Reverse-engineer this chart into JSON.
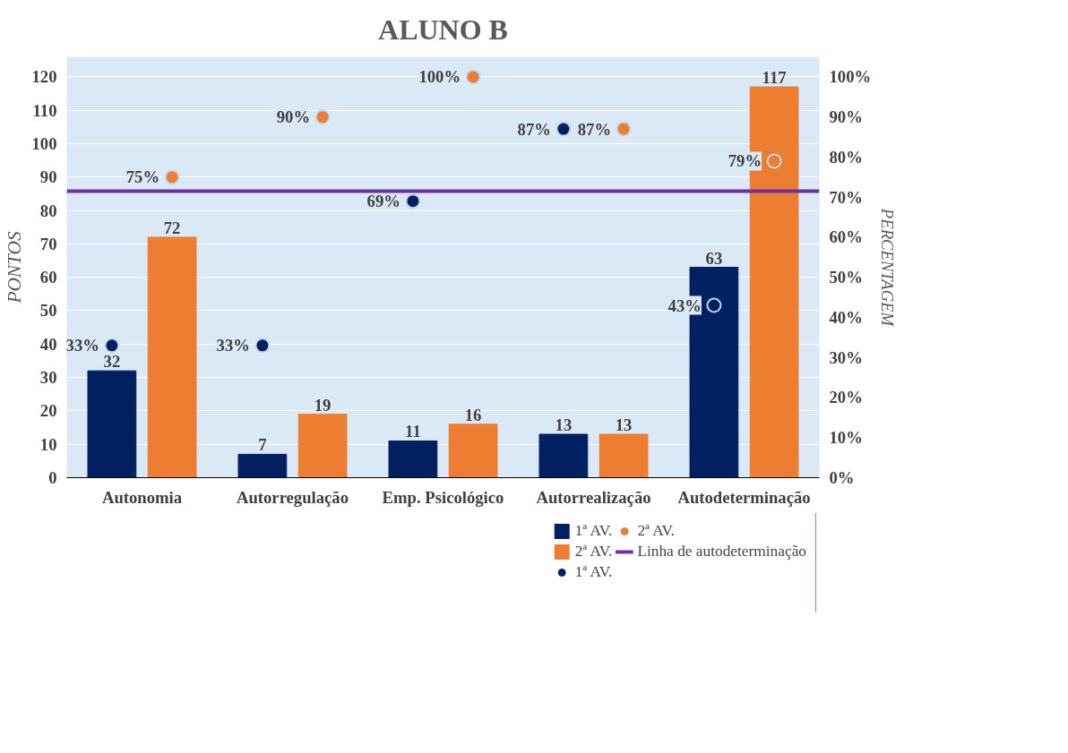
{
  "chart_data": {
    "type": "bar",
    "title": "ALUNO B",
    "ylabel": "PONTOS",
    "y2label": "PERCENTAGEM",
    "categories": [
      "Autonomia",
      "Autorregulação",
      "Emp. Psicológico",
      "Autorrealização",
      "Autodeterminação"
    ],
    "series": [
      {
        "name": "1ª AV.",
        "color": "#002060",
        "values": [
          32,
          7,
          11,
          13,
          63
        ],
        "data_labels": true
      },
      {
        "name": "2ª AV.",
        "color": "#ed7d31",
        "values": [
          72,
          19,
          16,
          13,
          117
        ],
        "data_labels": true
      },
      {
        "name": "1ª AV.",
        "type": "scatter",
        "axis": "y2",
        "color": "#002060",
        "marker": "circle",
        "values": [
          33,
          33,
          69,
          87,
          43
        ],
        "value_labels": [
          "33%",
          "33%",
          "69%",
          "87%",
          "43%"
        ]
      },
      {
        "name": "2ª AV.",
        "type": "scatter",
        "axis": "y2",
        "color": "#ed7d31",
        "marker": "circle",
        "values": [
          75,
          90,
          100,
          87,
          79
        ],
        "value_labels": [
          "75%",
          "90%",
          "100%",
          "87%",
          "79%"
        ]
      }
    ],
    "ylim": [
      0,
      120
    ],
    "yticks": [
      0,
      10,
      20,
      30,
      40,
      50,
      60,
      70,
      80,
      90,
      100,
      110,
      120
    ],
    "y2lim": [
      0,
      100
    ],
    "y2ticks": [
      {
        "value": 0,
        "label": "0%"
      },
      {
        "value": 10,
        "label": "10%"
      },
      {
        "value": 20,
        "label": "20%"
      },
      {
        "value": 30,
        "label": "30%"
      },
      {
        "value": 40,
        "label": "40%"
      },
      {
        "value": 50,
        "label": "50%"
      },
      {
        "value": 60,
        "label": "60%"
      },
      {
        "value": 70,
        "label": "70%"
      },
      {
        "value": 80,
        "label": "80%"
      },
      {
        "value": 90,
        "label": "90%"
      },
      {
        "value": 100,
        "label": "100%"
      }
    ],
    "ref_lines": [
      {
        "axis": "y2",
        "value": 71.5,
        "label": "Linha de autodeterminação",
        "color": "#7030a0"
      }
    ],
    "grid": "y",
    "legend": "bottom right"
  }
}
